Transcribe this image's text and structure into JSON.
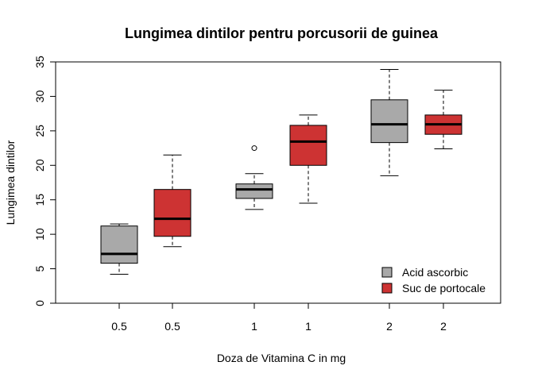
{
  "chart_data": {
    "type": "boxplot",
    "title": "Lungimea dintilor pentru porcusorii de guinea",
    "xlabel": "Doza de Vitamina C in mg",
    "ylabel": "Lungimea dintilor",
    "ylim": [
      0,
      35
    ],
    "yticks": [
      0,
      5,
      10,
      15,
      20,
      25,
      30,
      35
    ],
    "categories": [
      "0.5",
      "0.5",
      "1",
      "1",
      "2",
      "2"
    ],
    "legend": {
      "placement": "bottom-right",
      "items": [
        {
          "label": "Acid ascorbic",
          "color": "#a9a9a9"
        },
        {
          "label": "Suc de portocale",
          "color": "#cd3333"
        }
      ]
    },
    "boxes": [
      {
        "label": "0.5",
        "series": "Acid ascorbic",
        "color": "#a9a9a9",
        "whisker_low": 4.2,
        "q1": 5.8,
        "median": 7.15,
        "q3": 11.2,
        "whisker_high": 11.5,
        "outliers": []
      },
      {
        "label": "0.5",
        "series": "Suc de portocale",
        "color": "#cd3333",
        "whisker_low": 8.2,
        "q1": 9.7,
        "median": 12.25,
        "q3": 16.5,
        "whisker_high": 21.5,
        "outliers": []
      },
      {
        "label": "1",
        "series": "Acid ascorbic",
        "color": "#a9a9a9",
        "whisker_low": 13.6,
        "q1": 15.2,
        "median": 16.5,
        "q3": 17.3,
        "whisker_high": 18.8,
        "outliers": [
          22.5
        ]
      },
      {
        "label": "1",
        "series": "Suc de portocale",
        "color": "#cd3333",
        "whisker_low": 14.5,
        "q1": 20.0,
        "median": 23.45,
        "q3": 25.8,
        "whisker_high": 27.3,
        "outliers": []
      },
      {
        "label": "2",
        "series": "Acid ascorbic",
        "color": "#a9a9a9",
        "whisker_low": 18.5,
        "q1": 23.3,
        "median": 25.95,
        "q3": 29.5,
        "whisker_high": 33.9,
        "outliers": []
      },
      {
        "label": "2",
        "series": "Suc de portocale",
        "color": "#cd3333",
        "whisker_low": 22.4,
        "q1": 24.5,
        "median": 25.95,
        "q3": 27.3,
        "whisker_high": 30.9,
        "outliers": []
      }
    ]
  }
}
